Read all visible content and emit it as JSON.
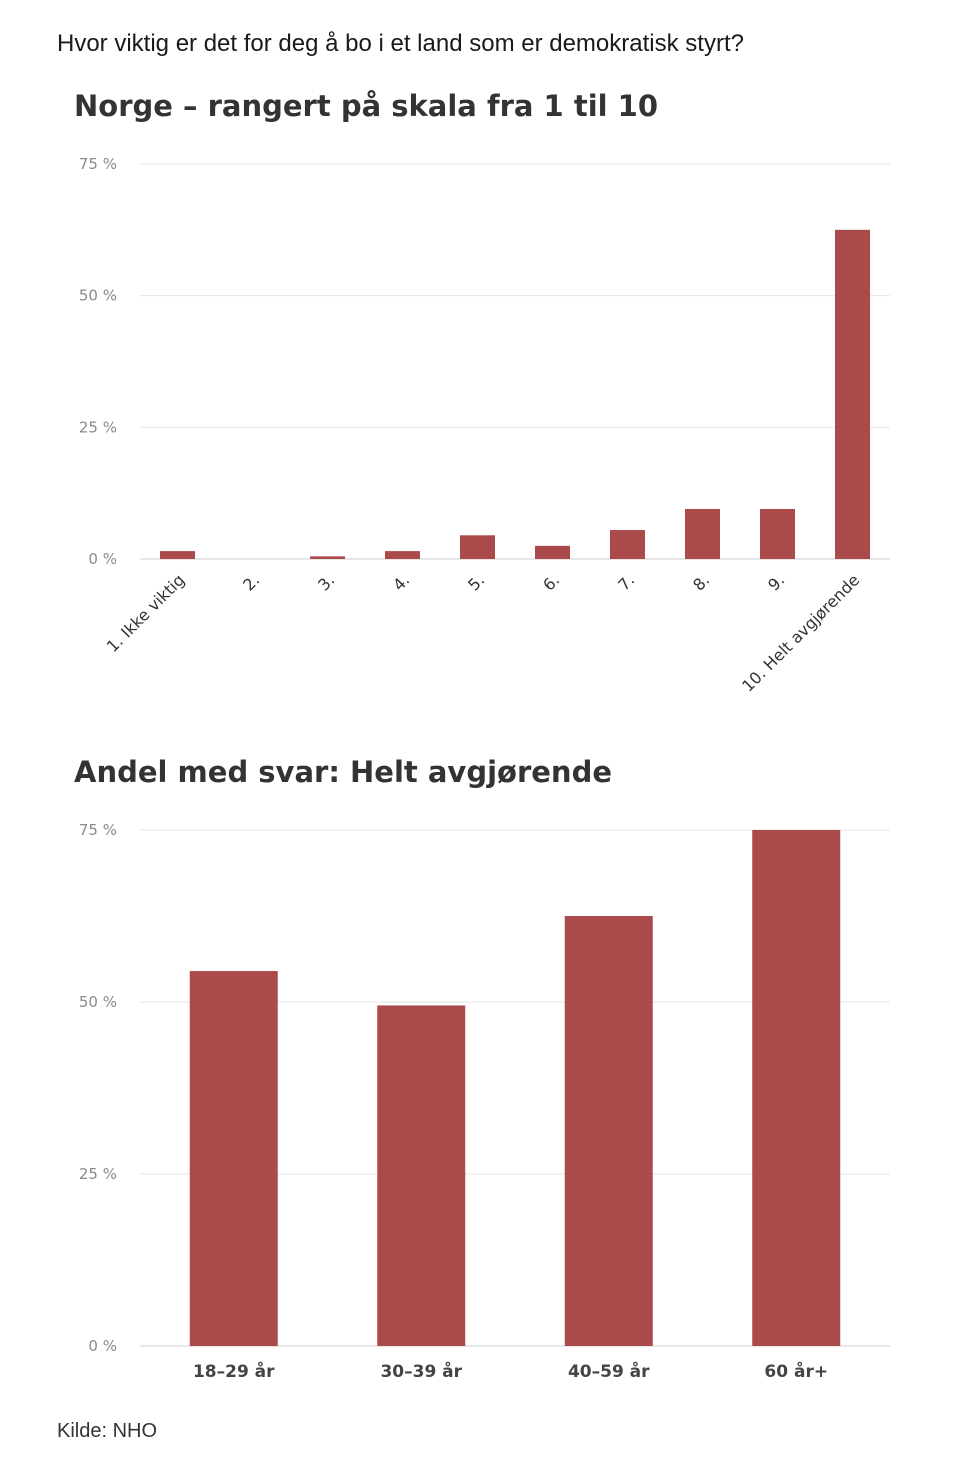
{
  "header": {
    "question": "Hvor viktig er det for deg å bo i et land som er demokratisk styrt?"
  },
  "colors": {
    "bar": "#ab4a4b"
  },
  "chart_data": [
    {
      "type": "bar",
      "title": "Norge – rangert på skala fra 1 til 10",
      "categories": [
        "1. Ikke viktig",
        "2.",
        "3.",
        "4.",
        "5.",
        "6.",
        "7.",
        "8.",
        "9.",
        "10. Helt avgjørende"
      ],
      "values": [
        1.5,
        0,
        0.5,
        1.5,
        4.5,
        2.5,
        5.5,
        9.5,
        9.5,
        62.5
      ],
      "ylim": [
        0,
        75
      ],
      "yticks": [
        0,
        25,
        50,
        75
      ],
      "ytick_labels": [
        "0 %",
        "25 %",
        "50 %",
        "75 %"
      ],
      "xlabel": "",
      "ylabel": "",
      "grid": true
    },
    {
      "type": "bar",
      "title": "Andel med svar: Helt avgjørende",
      "categories": [
        "18–29 år",
        "30–39 år",
        "40–59 år",
        "60 år+"
      ],
      "values": [
        54.5,
        49.5,
        62.5,
        75
      ],
      "ylim": [
        0,
        75
      ],
      "yticks": [
        0,
        25,
        50,
        75
      ],
      "ytick_labels": [
        "0 %",
        "25 %",
        "50 %",
        "75 %"
      ],
      "xlabel": "",
      "ylabel": "",
      "grid": true
    }
  ],
  "footer": {
    "source": "Kilde: NHO"
  }
}
